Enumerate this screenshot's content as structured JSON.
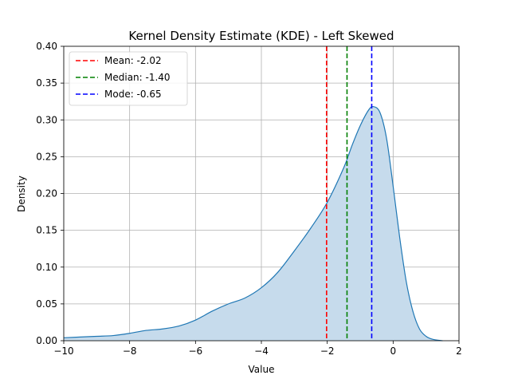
{
  "chart_data": {
    "type": "area",
    "title": "Kernel Density Estimate (KDE) - Left Skewed",
    "xlabel": "Value",
    "ylabel": "Density",
    "xlim": [
      -10,
      2
    ],
    "ylim": [
      0,
      0.4
    ],
    "xticks": [
      -10,
      -8,
      -6,
      -4,
      -2,
      0,
      2
    ],
    "xtick_labels": [
      "−10",
      "−8",
      "−6",
      "−4",
      "−2",
      "0",
      "2"
    ],
    "yticks": [
      0.0,
      0.05,
      0.1,
      0.15,
      0.2,
      0.25,
      0.3,
      0.35,
      0.4
    ],
    "ytick_labels": [
      "0.00",
      "0.05",
      "0.10",
      "0.15",
      "0.20",
      "0.25",
      "0.30",
      "0.35",
      "0.40"
    ],
    "grid": true,
    "legend_position": "top-left",
    "series": [
      {
        "color": "#1f77b4",
        "fill": "#c6dbec",
        "x": [
          -10,
          -9.5,
          -9,
          -8.5,
          -8,
          -7.5,
          -7,
          -6.5,
          -6,
          -5.5,
          -5,
          -4.5,
          -4,
          -3.5,
          -3,
          -2.5,
          -2,
          -1.5,
          -1.25,
          -1,
          -0.75,
          -0.6,
          -0.4,
          -0.2,
          0,
          0.2,
          0.4,
          0.6,
          0.8,
          1,
          1.2,
          1.5
        ],
        "y": [
          0.004,
          0.005,
          0.006,
          0.007,
          0.01,
          0.014,
          0.016,
          0.02,
          0.028,
          0.04,
          0.05,
          0.058,
          0.072,
          0.093,
          0.122,
          0.153,
          0.188,
          0.235,
          0.265,
          0.292,
          0.313,
          0.318,
          0.31,
          0.275,
          0.21,
          0.14,
          0.08,
          0.04,
          0.016,
          0.006,
          0.002,
          0.0
        ]
      }
    ],
    "lines": [
      {
        "label": "Mean: -2.02",
        "x": -2.02,
        "color": "#ff0000"
      },
      {
        "label": "Median: -1.40",
        "x": -1.4,
        "color": "#008000"
      },
      {
        "label": "Mode: -0.65",
        "x": -0.65,
        "color": "#0000ff"
      }
    ]
  }
}
